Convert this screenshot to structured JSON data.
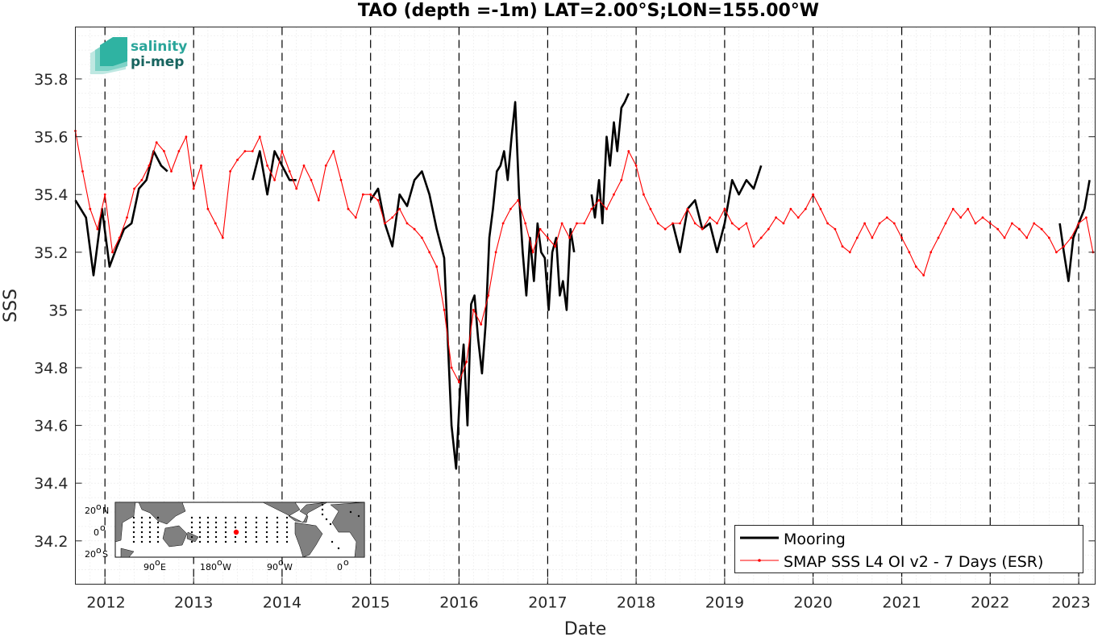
{
  "logo": {
    "line1": "salinity",
    "line2": "pi-mep",
    "color1": "#2aa59a",
    "color2": "#17645f"
  },
  "inset_map": {
    "lat_labels": [
      "20",
      "N",
      "0",
      "20",
      "S"
    ],
    "lon_labels": [
      "90",
      "E",
      "180",
      "W",
      "90",
      "W",
      "0"
    ],
    "degree": "o"
  },
  "chart_data": {
    "type": "line",
    "title": "TAO (depth =-1m) LAT=2.00°S;LON=155.00°W",
    "xlabel": "Date",
    "ylabel": "SSS",
    "x_type": "date",
    "xlim": [
      "2011-09-01",
      "2023-03-10"
    ],
    "ylim": [
      34.05,
      35.98
    ],
    "x_tick_values": [
      "2012-01-01",
      "2013-01-01",
      "2014-01-01",
      "2015-01-01",
      "2016-01-01",
      "2017-01-01",
      "2018-01-01",
      "2019-01-01",
      "2020-01-01",
      "2021-01-01",
      "2022-01-01",
      "2023-01-01"
    ],
    "x_tick_labels": [
      "2012",
      "2013",
      "2014",
      "2015",
      "2016",
      "2017",
      "2018",
      "2019",
      "2020",
      "2021",
      "2022",
      "2023"
    ],
    "y_ticks": [
      34.2,
      34.4,
      34.6,
      34.8,
      35,
      35.2,
      35.4,
      35.6,
      35.8
    ],
    "y_tick_labels": [
      "34.2",
      "34.4",
      "34.6",
      "34.8",
      "35",
      "35.2",
      "35.4",
      "35.6",
      "35.8"
    ],
    "grid": "minor dotted, major at year boundaries dashed",
    "legend_position": "bottom-right",
    "series": [
      {
        "name": "Mooring",
        "color": "#000000",
        "style": "thick line",
        "segments": [
          {
            "x": [
              "2011-09-01",
              "2011-10-15",
              "2011-11-15",
              "2011-12-20",
              "2012-01-20",
              "2012-02-20",
              "2012-03-20",
              "2012-04-20",
              "2012-05-20",
              "2012-06-20",
              "2012-07-20",
              "2012-08-20",
              "2012-09-15"
            ],
            "y": [
              35.38,
              35.32,
              35.12,
              35.35,
              35.15,
              35.22,
              35.28,
              35.3,
              35.42,
              35.45,
              35.55,
              35.5,
              35.48
            ]
          },
          {
            "x": [
              "2013-09-01",
              "2013-10-01",
              "2013-11-01",
              "2013-12-01",
              "2014-01-01",
              "2014-02-01",
              "2014-03-01"
            ],
            "y": [
              35.45,
              35.55,
              35.4,
              35.55,
              35.5,
              35.45,
              35.45
            ]
          },
          {
            "x": [
              "2015-01-01",
              "2015-02-01",
              "2015-03-01",
              "2015-04-01",
              "2015-05-01",
              "2015-06-01",
              "2015-07-01",
              "2015-08-01",
              "2015-09-01",
              "2015-10-01",
              "2015-11-01",
              "2015-12-01",
              "2015-12-20",
              "2016-01-05",
              "2016-01-20",
              "2016-02-05",
              "2016-02-20",
              "2016-03-05",
              "2016-03-20",
              "2016-04-05",
              "2016-04-20",
              "2016-05-05",
              "2016-05-20",
              "2016-06-05",
              "2016-06-20",
              "2016-07-05",
              "2016-07-20",
              "2016-08-05",
              "2016-08-20",
              "2016-09-05",
              "2016-09-20",
              "2016-10-05",
              "2016-10-20",
              "2016-11-05",
              "2016-11-20",
              "2016-12-05",
              "2016-12-20",
              "2017-01-05",
              "2017-01-20",
              "2017-02-05",
              "2017-02-20",
              "2017-03-05",
              "2017-03-20",
              "2017-04-05",
              "2017-04-20"
            ],
            "y": [
              35.38,
              35.42,
              35.3,
              35.22,
              35.4,
              35.36,
              35.45,
              35.48,
              35.4,
              35.28,
              35.18,
              34.6,
              34.45,
              34.72,
              34.88,
              34.6,
              35.02,
              35.05,
              34.9,
              34.78,
              34.95,
              35.25,
              35.35,
              35.48,
              35.5,
              35.55,
              35.45,
              35.6,
              35.72,
              35.4,
              35.2,
              35.05,
              35.25,
              35.1,
              35.3,
              35.2,
              35.18,
              35.0,
              35.2,
              35.25,
              35.05,
              35.1,
              35.0,
              35.28,
              35.2
            ]
          },
          {
            "x": [
              "2017-07-01",
              "2017-07-15",
              "2017-08-01",
              "2017-08-15",
              "2017-09-01",
              "2017-09-15",
              "2017-10-01",
              "2017-10-15",
              "2017-11-01",
              "2017-11-15",
              "2017-12-01"
            ],
            "y": [
              35.4,
              35.32,
              35.45,
              35.3,
              35.6,
              35.5,
              35.65,
              35.55,
              35.7,
              35.72,
              35.75
            ]
          },
          {
            "x": [
              "2018-06-01",
              "2018-07-01",
              "2018-08-01",
              "2018-09-01",
              "2018-10-01",
              "2018-11-01",
              "2018-12-01",
              "2019-01-01",
              "2019-02-01",
              "2019-03-01",
              "2019-04-01",
              "2019-05-01",
              "2019-06-01"
            ],
            "y": [
              35.3,
              35.2,
              35.35,
              35.38,
              35.28,
              35.3,
              35.2,
              35.3,
              35.45,
              35.4,
              35.45,
              35.42,
              35.5
            ]
          },
          {
            "x": [
              "2022-10-15",
              "2022-11-01",
              "2022-11-20",
              "2022-12-10",
              "2023-01-01",
              "2023-01-25",
              "2023-02-15"
            ],
            "y": [
              35.3,
              35.2,
              35.1,
              35.25,
              35.3,
              35.35,
              35.45
            ]
          }
        ]
      },
      {
        "name": "SMAP SSS L4 OI v2 - 7 Days (ESR)",
        "color": "#ff0000",
        "style": "thin line with dot markers",
        "x": [
          "2011-09-01",
          "2011-10-01",
          "2011-11-01",
          "2011-12-01",
          "2012-01-01",
          "2012-02-01",
          "2012-03-01",
          "2012-04-01",
          "2012-05-01",
          "2012-06-01",
          "2012-07-01",
          "2012-08-01",
          "2012-09-01",
          "2012-10-01",
          "2012-11-01",
          "2012-12-01",
          "2013-01-01",
          "2013-02-01",
          "2013-03-01",
          "2013-04-01",
          "2013-05-01",
          "2013-06-01",
          "2013-07-01",
          "2013-08-01",
          "2013-09-01",
          "2013-10-01",
          "2013-11-01",
          "2013-12-01",
          "2014-01-01",
          "2014-02-01",
          "2014-03-01",
          "2014-04-01",
          "2014-05-01",
          "2014-06-01",
          "2014-07-01",
          "2014-08-01",
          "2014-09-01",
          "2014-10-01",
          "2014-11-01",
          "2014-12-01",
          "2015-01-01",
          "2015-02-01",
          "2015-03-01",
          "2015-04-01",
          "2015-05-01",
          "2015-06-01",
          "2015-07-01",
          "2015-08-01",
          "2015-09-01",
          "2015-10-01",
          "2015-11-01",
          "2015-12-01",
          "2016-01-01",
          "2016-02-01",
          "2016-03-01",
          "2016-04-01",
          "2016-05-01",
          "2016-06-01",
          "2016-07-01",
          "2016-08-01",
          "2016-09-01",
          "2016-10-01",
          "2016-11-01",
          "2016-12-01",
          "2017-01-01",
          "2017-02-01",
          "2017-03-01",
          "2017-04-01",
          "2017-05-01",
          "2017-06-01",
          "2017-07-01",
          "2017-08-01",
          "2017-09-01",
          "2017-10-01",
          "2017-11-01",
          "2017-12-01",
          "2018-01-01",
          "2018-02-01",
          "2018-03-01",
          "2018-04-01",
          "2018-05-01",
          "2018-06-01",
          "2018-07-01",
          "2018-08-01",
          "2018-09-01",
          "2018-10-01",
          "2018-11-01",
          "2018-12-01",
          "2019-01-01",
          "2019-02-01",
          "2019-03-01",
          "2019-04-01",
          "2019-05-01",
          "2019-06-01",
          "2019-07-01",
          "2019-08-01",
          "2019-09-01",
          "2019-10-01",
          "2019-11-01",
          "2019-12-01",
          "2020-01-01",
          "2020-02-01",
          "2020-03-01",
          "2020-04-01",
          "2020-05-01",
          "2020-06-01",
          "2020-07-01",
          "2020-08-01",
          "2020-09-01",
          "2020-10-01",
          "2020-11-01",
          "2020-12-01",
          "2021-01-01",
          "2021-02-01",
          "2021-03-01",
          "2021-04-01",
          "2021-05-01",
          "2021-06-01",
          "2021-07-01",
          "2021-08-01",
          "2021-09-01",
          "2021-10-01",
          "2021-11-01",
          "2021-12-01",
          "2022-01-01",
          "2022-02-01",
          "2022-03-01",
          "2022-04-01",
          "2022-05-01",
          "2022-06-01",
          "2022-07-01",
          "2022-08-01",
          "2022-09-01",
          "2022-10-01",
          "2022-11-01",
          "2022-12-01",
          "2023-01-01",
          "2023-02-01",
          "2023-03-01"
        ],
        "y": [
          35.62,
          35.48,
          35.35,
          35.28,
          35.4,
          35.2,
          35.25,
          35.32,
          35.42,
          35.45,
          35.5,
          35.58,
          35.55,
          35.48,
          35.55,
          35.6,
          35.42,
          35.5,
          35.35,
          35.3,
          35.25,
          35.48,
          35.52,
          35.55,
          35.55,
          35.6,
          35.5,
          35.45,
          35.55,
          35.48,
          35.42,
          35.5,
          35.45,
          35.38,
          35.5,
          35.55,
          35.45,
          35.35,
          35.32,
          35.4,
          35.4,
          35.38,
          35.3,
          35.32,
          35.35,
          35.3,
          35.28,
          35.25,
          35.2,
          35.15,
          35.0,
          34.8,
          34.75,
          34.82,
          35.0,
          34.95,
          35.05,
          35.2,
          35.3,
          35.35,
          35.38,
          35.3,
          35.2,
          35.28,
          35.25,
          35.22,
          35.3,
          35.25,
          35.3,
          35.3,
          35.35,
          35.38,
          35.35,
          35.4,
          35.45,
          35.55,
          35.5,
          35.4,
          35.35,
          35.3,
          35.28,
          35.3,
          35.3,
          35.35,
          35.3,
          35.28,
          35.32,
          35.3,
          35.35,
          35.3,
          35.28,
          35.3,
          35.22,
          35.25,
          35.28,
          35.32,
          35.3,
          35.35,
          35.32,
          35.35,
          35.4,
          35.35,
          35.3,
          35.28,
          35.22,
          35.2,
          35.25,
          35.3,
          35.25,
          35.3,
          35.32,
          35.3,
          35.25,
          35.2,
          35.15,
          35.12,
          35.2,
          35.25,
          35.3,
          35.35,
          35.32,
          35.35,
          35.3,
          35.32,
          35.3,
          35.28,
          35.25,
          35.3,
          35.28,
          35.25,
          35.3,
          35.28,
          35.25,
          35.2,
          35.22,
          35.25,
          35.3,
          35.32,
          35.2
        ]
      }
    ]
  }
}
